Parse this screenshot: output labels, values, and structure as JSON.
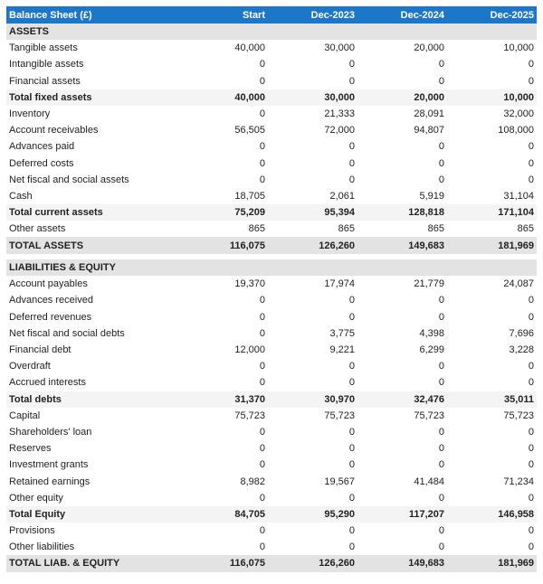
{
  "header": {
    "title": "Balance Sheet (£)",
    "columns": [
      "Start",
      "Dec-2023",
      "Dec-2024",
      "Dec-2025"
    ]
  },
  "colors": {
    "header_bg": "#1d77c9",
    "section_bg": "#e3e3e3",
    "total_bg": "#f4f4f4"
  },
  "assets": {
    "title": "ASSETS",
    "rows": [
      {
        "label": "Tangible assets",
        "type": "normal",
        "values": [
          "40,000",
          "30,000",
          "20,000",
          "10,000"
        ]
      },
      {
        "label": "Intangible assets",
        "type": "normal",
        "values": [
          "0",
          "0",
          "0",
          "0"
        ]
      },
      {
        "label": "Financial assets",
        "type": "normal",
        "values": [
          "0",
          "0",
          "0",
          "0"
        ]
      },
      {
        "label": "Total fixed assets",
        "type": "total",
        "values": [
          "40,000",
          "30,000",
          "20,000",
          "10,000"
        ]
      },
      {
        "label": "Inventory",
        "type": "normal",
        "values": [
          "0",
          "21,333",
          "28,091",
          "32,000"
        ]
      },
      {
        "label": "Account receivables",
        "type": "normal",
        "values": [
          "56,505",
          "72,000",
          "94,807",
          "108,000"
        ]
      },
      {
        "label": "Advances paid",
        "type": "normal",
        "values": [
          "0",
          "0",
          "0",
          "0"
        ]
      },
      {
        "label": "Deferred costs",
        "type": "normal",
        "values": [
          "0",
          "0",
          "0",
          "0"
        ]
      },
      {
        "label": "Net fiscal and social assets",
        "type": "normal",
        "values": [
          "0",
          "0",
          "0",
          "0"
        ]
      },
      {
        "label": "Cash",
        "type": "normal",
        "values": [
          "18,705",
          "2,061",
          "5,919",
          "31,104"
        ]
      },
      {
        "label": "Total current assets",
        "type": "total",
        "values": [
          "75,209",
          "95,394",
          "128,818",
          "171,104"
        ]
      },
      {
        "label": "Other assets",
        "type": "normal",
        "values": [
          "865",
          "865",
          "865",
          "865"
        ]
      },
      {
        "label": "TOTAL ASSETS",
        "type": "grand",
        "values": [
          "116,075",
          "126,260",
          "149,683",
          "181,969"
        ]
      }
    ]
  },
  "liabilities": {
    "title": "LIABILITIES & EQUITY",
    "rows": [
      {
        "label": "Account payables",
        "type": "normal",
        "values": [
          "19,370",
          "17,974",
          "21,779",
          "24,087"
        ]
      },
      {
        "label": "Advances received",
        "type": "normal",
        "values": [
          "0",
          "0",
          "0",
          "0"
        ]
      },
      {
        "label": "Deferred revenues",
        "type": "normal",
        "values": [
          "0",
          "0",
          "0",
          "0"
        ]
      },
      {
        "label": "Net fiscal and social debts",
        "type": "normal",
        "values": [
          "0",
          "3,775",
          "4,398",
          "7,696"
        ]
      },
      {
        "label": "Financial debt",
        "type": "normal",
        "values": [
          "12,000",
          "9,221",
          "6,299",
          "3,228"
        ]
      },
      {
        "label": "Overdraft",
        "type": "normal",
        "values": [
          "0",
          "0",
          "0",
          "0"
        ]
      },
      {
        "label": "Accrued interests",
        "type": "normal",
        "values": [
          "0",
          "0",
          "0",
          "0"
        ]
      },
      {
        "label": "Total debts",
        "type": "total",
        "values": [
          "31,370",
          "30,970",
          "32,476",
          "35,011"
        ]
      },
      {
        "label": "Capital",
        "type": "normal",
        "values": [
          "75,723",
          "75,723",
          "75,723",
          "75,723"
        ]
      },
      {
        "label": "Shareholders' loan",
        "type": "normal",
        "values": [
          "0",
          "0",
          "0",
          "0"
        ]
      },
      {
        "label": "Reserves",
        "type": "normal",
        "values": [
          "0",
          "0",
          "0",
          "0"
        ]
      },
      {
        "label": "Investment grants",
        "type": "normal",
        "values": [
          "0",
          "0",
          "0",
          "0"
        ]
      },
      {
        "label": "Retained earnings",
        "type": "normal",
        "values": [
          "8,982",
          "19,567",
          "41,484",
          "71,234"
        ]
      },
      {
        "label": "Other equity",
        "type": "normal",
        "values": [
          "0",
          "0",
          "0",
          "0"
        ]
      },
      {
        "label": "Total Equity",
        "type": "total",
        "values": [
          "84,705",
          "95,290",
          "117,207",
          "146,958"
        ]
      },
      {
        "label": "Provisions",
        "type": "normal",
        "values": [
          "0",
          "0",
          "0",
          "0"
        ]
      },
      {
        "label": "Other liabilities",
        "type": "normal",
        "values": [
          "0",
          "0",
          "0",
          "0"
        ]
      },
      {
        "label": "TOTAL LIAB. & EQUITY",
        "type": "grand",
        "values": [
          "116,075",
          "126,260",
          "149,683",
          "181,969"
        ]
      }
    ]
  }
}
